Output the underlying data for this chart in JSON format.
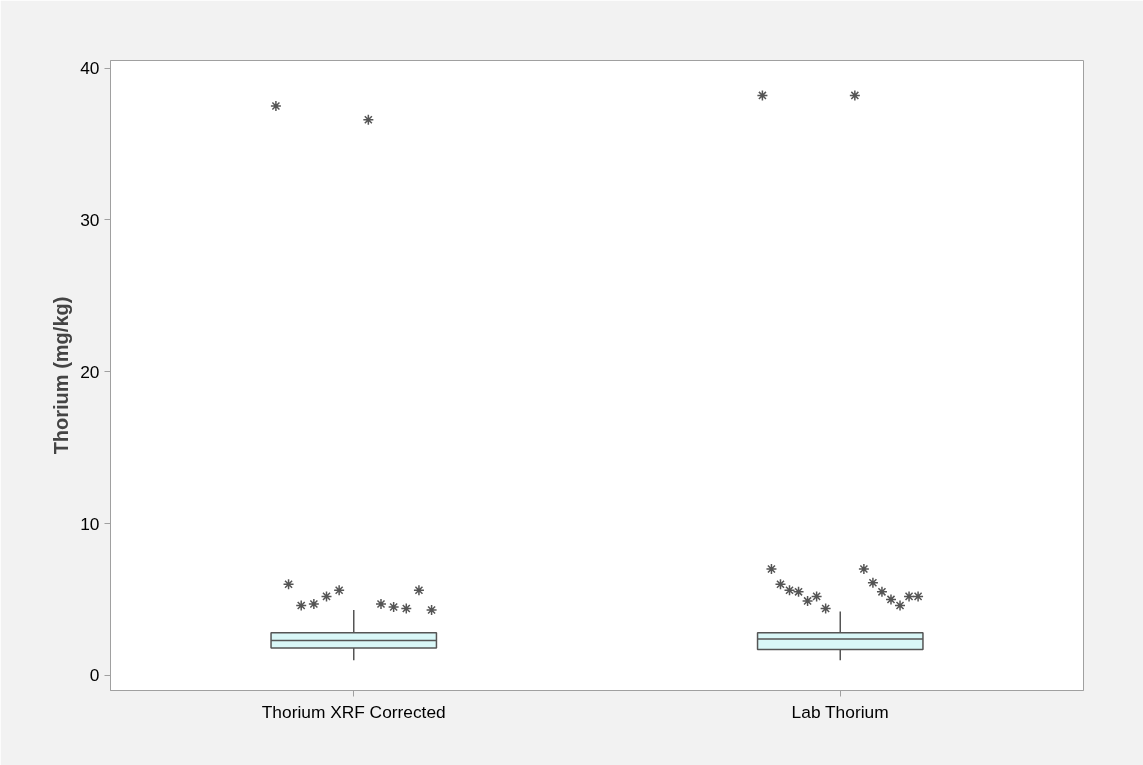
{
  "chart_data": {
    "type": "box",
    "ylabel": "Thorium (mg/kg)",
    "categories": [
      "Thorium XRF Corrected",
      "Lab Thorium"
    ],
    "boxes": [
      {
        "low": 1.0,
        "q1": 1.8,
        "median": 2.3,
        "q3": 2.8,
        "high": 4.3,
        "outliers": [
          37.5,
          36.6,
          6.0,
          4.7,
          4.6,
          4.5,
          4.7,
          4.4,
          5.2,
          5.6,
          5.6,
          4.3
        ]
      },
      {
        "low": 1.0,
        "q1": 1.7,
        "median": 2.4,
        "q3": 2.8,
        "high": 4.2,
        "outliers": [
          38.2,
          38.2,
          7.0,
          7.0,
          6.0,
          6.1,
          5.6,
          5.5,
          5.5,
          5.0,
          4.9,
          4.6,
          5.2,
          5.2,
          4.4,
          5.2
        ]
      }
    ],
    "color": "#d9f7f7",
    "ylim": [
      -1,
      40.5
    ],
    "yticks": [
      0,
      10,
      20,
      30,
      40
    ],
    "marker": "star",
    "grid": false
  }
}
